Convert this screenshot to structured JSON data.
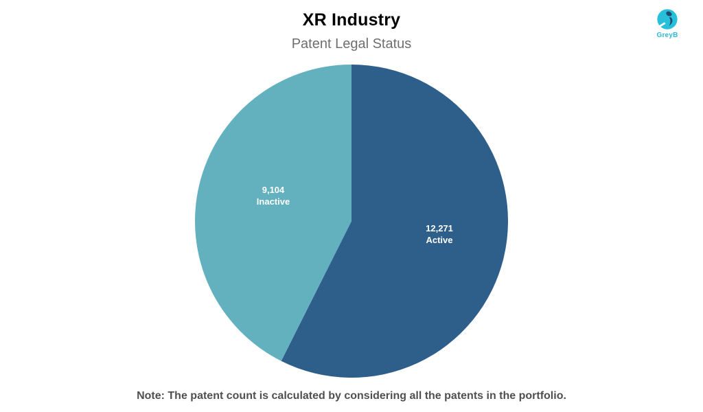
{
  "branding": {
    "logo_text": "GreyB",
    "logo_cyan": "#27BFD9",
    "logo_navy": "#1F4A6E"
  },
  "chart_data": {
    "type": "pie",
    "title": "XR Industry",
    "subtitle": "Patent Legal Status",
    "note": "Note: The patent count is calculated by considering all the patents in the portfolio.",
    "categories": [
      "Active",
      "Inactive"
    ],
    "values": [
      12271,
      9104
    ],
    "start_angle_deg": 0,
    "direction": "clockwise",
    "legend": "none",
    "slices": [
      {
        "name": "Active",
        "value": 12271,
        "label_value": "12,271",
        "label_name": "Active",
        "color": "#2E5E8A"
      },
      {
        "name": "Inactive",
        "value": 9104,
        "label_value": "9,104",
        "label_name": "Inactive",
        "color": "#63B1BF"
      }
    ]
  }
}
